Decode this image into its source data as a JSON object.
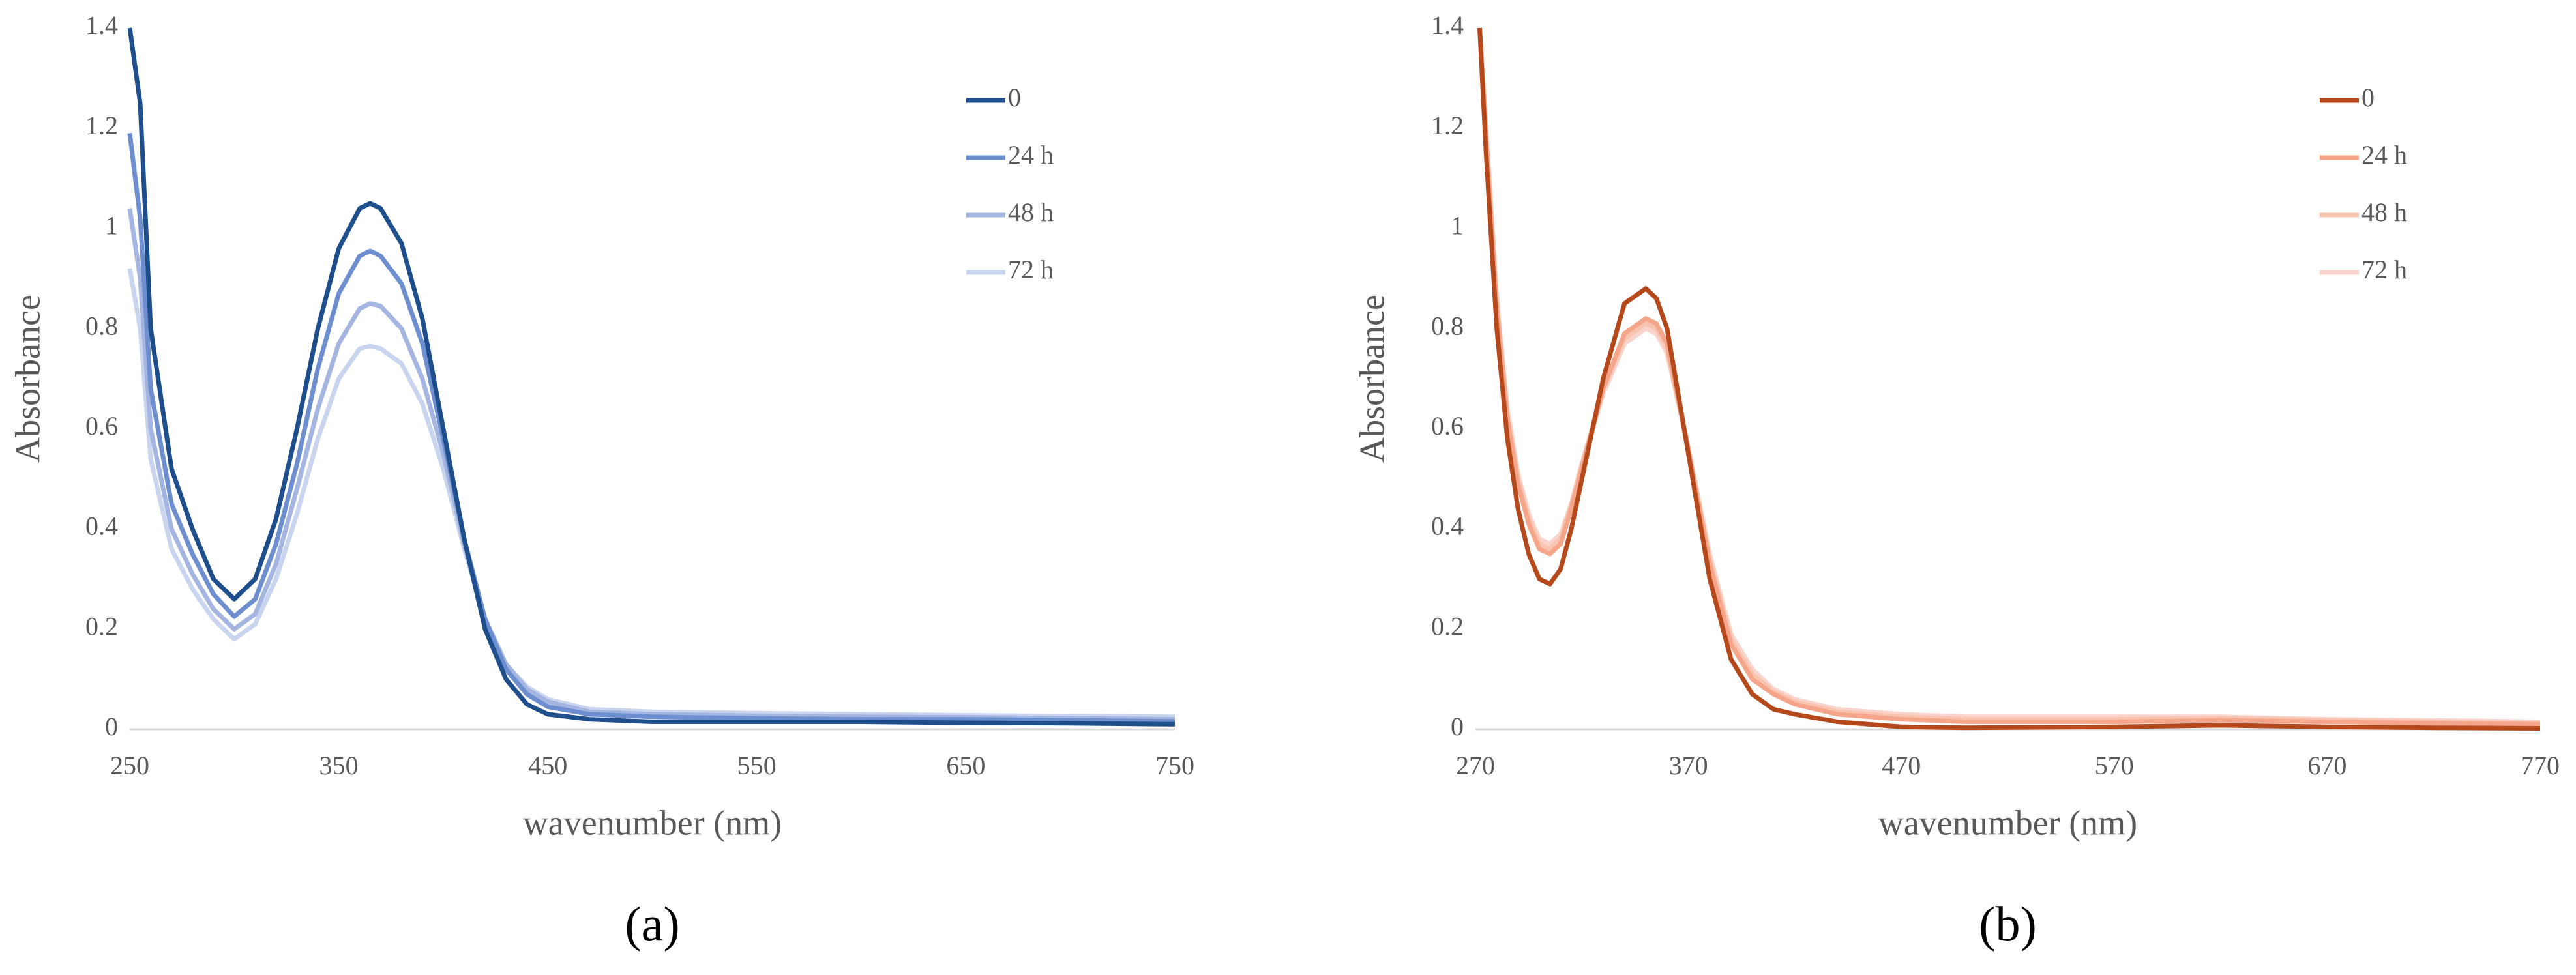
{
  "chart_data": [
    {
      "type": "line",
      "panel_label": "(a)",
      "x_label": "wavenumber (nm)",
      "y_label": "Absorbance",
      "xlim": [
        250,
        750
      ],
      "xticks": [
        250,
        350,
        450,
        550,
        650,
        750
      ],
      "ylim": [
        0,
        1.4
      ],
      "yticks": [
        0,
        0.2,
        0.4,
        0.6,
        0.8,
        1,
        1.2,
        1.4
      ],
      "grid": false,
      "legend": "upper right",
      "x": [
        250,
        255,
        260,
        270,
        280,
        290,
        300,
        310,
        320,
        330,
        340,
        350,
        360,
        365,
        370,
        380,
        390,
        400,
        410,
        420,
        430,
        440,
        450,
        470,
        500,
        550,
        600,
        650,
        700,
        750
      ],
      "series": [
        {
          "name": "0",
          "color": "#1f4e8c",
          "values": [
            1.4,
            1.25,
            0.8,
            0.52,
            0.4,
            0.3,
            0.26,
            0.3,
            0.42,
            0.6,
            0.8,
            0.96,
            1.04,
            1.05,
            1.04,
            0.97,
            0.82,
            0.6,
            0.38,
            0.2,
            0.1,
            0.05,
            0.03,
            0.02,
            0.015,
            0.015,
            0.015,
            0.013,
            0.012,
            0.01
          ]
        },
        {
          "name": "24 h",
          "color": "#6e8fcf",
          "values": [
            1.19,
            1.02,
            0.68,
            0.45,
            0.35,
            0.27,
            0.225,
            0.26,
            0.37,
            0.53,
            0.72,
            0.87,
            0.945,
            0.955,
            0.945,
            0.89,
            0.77,
            0.58,
            0.38,
            0.22,
            0.12,
            0.07,
            0.045,
            0.03,
            0.025,
            0.022,
            0.02,
            0.02,
            0.018,
            0.016
          ]
        },
        {
          "name": "48 h",
          "color": "#a3b5e0",
          "values": [
            1.04,
            0.9,
            0.6,
            0.4,
            0.31,
            0.24,
            0.2,
            0.23,
            0.33,
            0.48,
            0.64,
            0.77,
            0.84,
            0.85,
            0.845,
            0.8,
            0.7,
            0.55,
            0.37,
            0.22,
            0.13,
            0.08,
            0.055,
            0.035,
            0.03,
            0.027,
            0.025,
            0.024,
            0.022,
            0.02
          ]
        },
        {
          "name": "72 h",
          "color": "#c9d5ee",
          "values": [
            0.92,
            0.8,
            0.54,
            0.36,
            0.28,
            0.22,
            0.18,
            0.21,
            0.3,
            0.43,
            0.58,
            0.7,
            0.76,
            0.765,
            0.76,
            0.73,
            0.65,
            0.52,
            0.36,
            0.22,
            0.13,
            0.085,
            0.06,
            0.04,
            0.035,
            0.032,
            0.03,
            0.028,
            0.026,
            0.025
          ]
        }
      ]
    },
    {
      "type": "line",
      "panel_label": "(b)",
      "x_label": "wavenumber (nm)",
      "y_label": "Absorbance",
      "xlim": [
        270,
        770
      ],
      "xticks": [
        270,
        370,
        470,
        570,
        670,
        770
      ],
      "ylim": [
        0,
        1.4
      ],
      "yticks": [
        0,
        0.2,
        0.4,
        0.6,
        0.8,
        1,
        1.2,
        1.4
      ],
      "grid": false,
      "legend": "upper right",
      "x": [
        272,
        275,
        280,
        285,
        290,
        295,
        300,
        305,
        310,
        315,
        320,
        330,
        340,
        350,
        355,
        360,
        370,
        380,
        390,
        400,
        410,
        420,
        440,
        470,
        500,
        570,
        620,
        670,
        720,
        770
      ],
      "series": [
        {
          "name": "0",
          "color": "#b5491b",
          "values": [
            1.4,
            1.15,
            0.8,
            0.58,
            0.44,
            0.35,
            0.3,
            0.29,
            0.32,
            0.4,
            0.5,
            0.7,
            0.85,
            0.88,
            0.86,
            0.8,
            0.55,
            0.3,
            0.14,
            0.07,
            0.04,
            0.03,
            0.015,
            0.005,
            0.003,
            0.005,
            0.008,
            0.005,
            0.003,
            0.002
          ]
        },
        {
          "name": "24 h",
          "color": "#f4a58a",
          "values": [
            1.4,
            1.18,
            0.84,
            0.62,
            0.49,
            0.41,
            0.36,
            0.35,
            0.37,
            0.44,
            0.52,
            0.68,
            0.79,
            0.82,
            0.81,
            0.77,
            0.56,
            0.33,
            0.17,
            0.1,
            0.07,
            0.05,
            0.03,
            0.02,
            0.015,
            0.015,
            0.018,
            0.015,
            0.012,
            0.01
          ]
        },
        {
          "name": "48 h",
          "color": "#f8c4b0",
          "values": [
            1.4,
            1.19,
            0.85,
            0.63,
            0.5,
            0.42,
            0.37,
            0.36,
            0.38,
            0.45,
            0.53,
            0.68,
            0.78,
            0.81,
            0.8,
            0.76,
            0.56,
            0.34,
            0.18,
            0.11,
            0.075,
            0.055,
            0.035,
            0.025,
            0.02,
            0.02,
            0.022,
            0.018,
            0.015,
            0.012
          ]
        },
        {
          "name": "72 h",
          "color": "#fad4cc",
          "values": [
            1.4,
            1.2,
            0.86,
            0.64,
            0.51,
            0.43,
            0.38,
            0.37,
            0.39,
            0.45,
            0.53,
            0.67,
            0.77,
            0.8,
            0.79,
            0.75,
            0.56,
            0.35,
            0.19,
            0.12,
            0.08,
            0.06,
            0.04,
            0.03,
            0.025,
            0.025,
            0.025,
            0.02,
            0.018,
            0.015
          ]
        }
      ]
    }
  ]
}
